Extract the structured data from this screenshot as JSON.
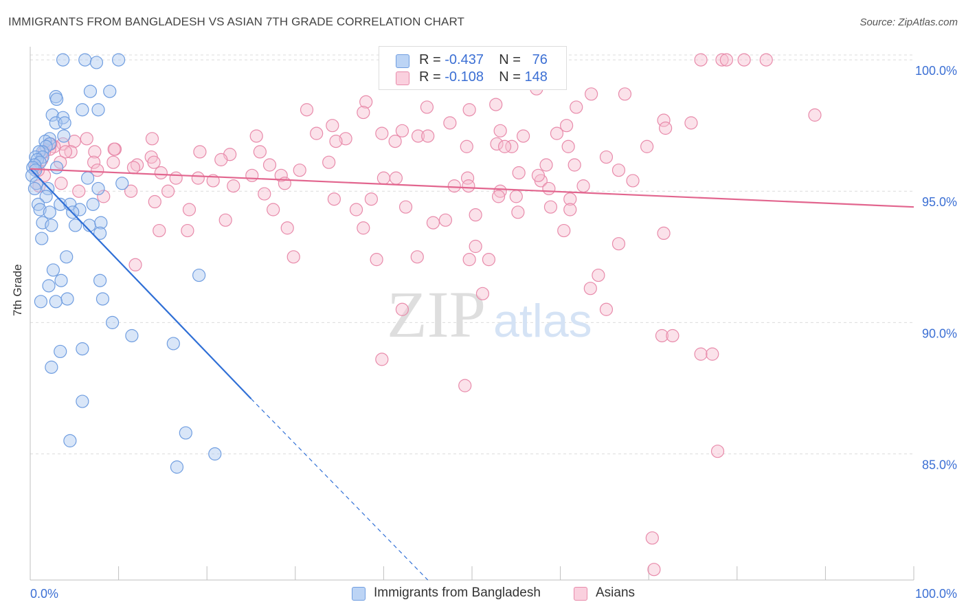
{
  "header": {
    "title": "IMMIGRANTS FROM BANGLADESH VS ASIAN 7TH GRADE CORRELATION CHART",
    "source": "Source: ZipAtlas.com"
  },
  "watermark": {
    "zip": "ZIP",
    "atlas": "atlas"
  },
  "legend": {
    "rows": [
      {
        "r_label": "R = ",
        "r_value": "-0.437",
        "n_label": "N = ",
        "n_value": "76"
      },
      {
        "r_label": "R = ",
        "r_value": "-0.108",
        "n_label": "N = ",
        "n_value": "148"
      }
    ]
  },
  "bottom_legend": {
    "series1": "Immigrants from Bangladesh",
    "series2": "Asians"
  },
  "colors": {
    "blue_fill": "#aac8f0",
    "blue_stroke": "#6f9de0",
    "blue_line": "#2f6fd6",
    "pink_fill": "#f7bfd1",
    "pink_stroke": "#e88aaa",
    "pink_line": "#e2658e",
    "tick_label": "#3b6fd4"
  },
  "chart_data": {
    "type": "scatter",
    "title": "IMMIGRANTS FROM BANGLADESH VS ASIAN 7TH GRADE CORRELATION CHART",
    "xlabel": "",
    "ylabel": "7th Grade",
    "xlim": [
      0,
      100
    ],
    "ylim": [
      80.2,
      100.5
    ],
    "x_tick_labels": [
      "0.0%",
      "100.0%"
    ],
    "y_ticks": [
      {
        "value": 100,
        "label": "100.0%"
      },
      {
        "value": 95,
        "label": "95.0%"
      },
      {
        "value": 90,
        "label": "90.0%"
      },
      {
        "value": 85,
        "label": "85.0%"
      }
    ],
    "grid": "horizontal dashed",
    "legend_position": "top-center",
    "series": [
      {
        "name": "Immigrants from Bangladesh",
        "R": -0.437,
        "N": 76,
        "trend": {
          "x": [
            0,
            25
          ],
          "y": [
            95.85,
            87.1
          ],
          "dashed_to": [
            45,
            80.2
          ]
        },
        "points": [
          [
            3.7,
            100
          ],
          [
            6.2,
            100
          ],
          [
            7.5,
            99.9
          ],
          [
            10,
            100
          ],
          [
            6.8,
            98.8
          ],
          [
            9,
            98.8
          ],
          [
            2.9,
            98.6
          ],
          [
            3,
            98.5
          ],
          [
            5.9,
            98.1
          ],
          [
            7.7,
            98.1
          ],
          [
            2.5,
            97.9
          ],
          [
            3.7,
            97.8
          ],
          [
            2.9,
            97.6
          ],
          [
            3.9,
            97.6
          ],
          [
            3.8,
            97.1
          ],
          [
            2.2,
            97
          ],
          [
            1.7,
            96.9
          ],
          [
            2.2,
            96.8
          ],
          [
            1.8,
            96.7
          ],
          [
            1.4,
            96.5
          ],
          [
            1,
            96.5
          ],
          [
            0.6,
            96.3
          ],
          [
            1.4,
            96.3
          ],
          [
            0.8,
            96.2
          ],
          [
            1.1,
            96.1
          ],
          [
            0.5,
            96
          ],
          [
            3,
            95.9
          ],
          [
            0.3,
            95.9
          ],
          [
            0.6,
            95.8
          ],
          [
            0.2,
            95.6
          ],
          [
            6.5,
            95.5
          ],
          [
            0.7,
            95.3
          ],
          [
            10.4,
            95.3
          ],
          [
            0.5,
            95.1
          ],
          [
            2,
            95.1
          ],
          [
            7.7,
            95.1
          ],
          [
            1.8,
            94.8
          ],
          [
            0.9,
            94.5
          ],
          [
            3.4,
            94.5
          ],
          [
            4.5,
            94.5
          ],
          [
            7.1,
            94.5
          ],
          [
            5.6,
            94.3
          ],
          [
            1.1,
            94.3
          ],
          [
            2.2,
            94.2
          ],
          [
            4.8,
            94.2
          ],
          [
            1.4,
            93.8
          ],
          [
            2.4,
            93.7
          ],
          [
            5.1,
            93.7
          ],
          [
            6.7,
            93.7
          ],
          [
            8,
            93.8
          ],
          [
            7.9,
            93.4
          ],
          [
            1.3,
            93.2
          ],
          [
            4.1,
            92.5
          ],
          [
            2.6,
            92
          ],
          [
            3.5,
            91.6
          ],
          [
            7.9,
            91.6
          ],
          [
            19.1,
            91.8
          ],
          [
            2.1,
            91.4
          ],
          [
            8.2,
            90.9
          ],
          [
            4.2,
            90.9
          ],
          [
            1.2,
            90.8
          ],
          [
            2.9,
            90.8
          ],
          [
            9.3,
            90
          ],
          [
            11.5,
            89.5
          ],
          [
            16.2,
            89.2
          ],
          [
            3.4,
            88.9
          ],
          [
            5.9,
            89
          ],
          [
            2.4,
            88.3
          ],
          [
            5.9,
            87
          ],
          [
            17.6,
            85.8
          ],
          [
            4.5,
            85.5
          ],
          [
            20.9,
            85
          ],
          [
            16.6,
            84.5
          ]
        ]
      },
      {
        "name": "Asians",
        "R": -0.108,
        "N": 148,
        "trend": {
          "x": [
            0,
            100
          ],
          "y": [
            95.85,
            94.4
          ]
        },
        "points": [
          [
            75.9,
            100
          ],
          [
            78.3,
            100
          ],
          [
            78.8,
            100
          ],
          [
            80.8,
            100
          ],
          [
            83.3,
            100
          ],
          [
            57.3,
            98.9
          ],
          [
            63.5,
            98.7
          ],
          [
            67.3,
            98.7
          ],
          [
            38,
            98.4
          ],
          [
            52.7,
            98.3
          ],
          [
            61.8,
            98.2
          ],
          [
            44.9,
            98.2
          ],
          [
            49.7,
            98.1
          ],
          [
            31.3,
            98.1
          ],
          [
            37.7,
            98
          ],
          [
            88.8,
            97.9
          ],
          [
            71.7,
            97.7
          ],
          [
            74.8,
            97.6
          ],
          [
            34.2,
            97.5
          ],
          [
            47.5,
            97.6
          ],
          [
            71.9,
            97.4
          ],
          [
            42.1,
            97.3
          ],
          [
            53.2,
            97.3
          ],
          [
            59.6,
            97.2
          ],
          [
            32.4,
            97.2
          ],
          [
            39.8,
            97.2
          ],
          [
            43.9,
            97.1
          ],
          [
            55.8,
            97.1
          ],
          [
            45,
            97.1
          ],
          [
            35.7,
            97
          ],
          [
            25.6,
            97.1
          ],
          [
            13.8,
            97
          ],
          [
            34.6,
            96.9
          ],
          [
            41.3,
            96.9
          ],
          [
            52.8,
            96.8
          ],
          [
            54.5,
            96.7
          ],
          [
            53.7,
            96.7
          ],
          [
            49.4,
            96.7
          ],
          [
            6.4,
            97
          ],
          [
            5,
            96.9
          ],
          [
            3.7,
            96.8
          ],
          [
            2.7,
            96.7
          ],
          [
            4.6,
            96.5
          ],
          [
            7.3,
            96.5
          ],
          [
            4,
            96.5
          ],
          [
            2.2,
            96.6
          ],
          [
            9.6,
            96.6
          ],
          [
            9.5,
            96.6
          ],
          [
            19.2,
            96.5
          ],
          [
            26,
            96.5
          ],
          [
            22.6,
            96.4
          ],
          [
            13.7,
            96.3
          ],
          [
            14,
            96.1
          ],
          [
            12.1,
            96
          ],
          [
            9.4,
            96.1
          ],
          [
            7.2,
            96.1
          ],
          [
            3.4,
            96.1
          ],
          [
            7.6,
            95.8
          ],
          [
            11.7,
            95.9
          ],
          [
            14.8,
            95.7
          ],
          [
            16.5,
            95.5
          ],
          [
            19,
            95.5
          ],
          [
            21.6,
            96.2
          ],
          [
            27.1,
            96
          ],
          [
            33.8,
            96.1
          ],
          [
            30.5,
            95.8
          ],
          [
            28.4,
            95.6
          ],
          [
            25.1,
            95.6
          ],
          [
            40,
            95.5
          ],
          [
            49.5,
            95.5
          ],
          [
            49.6,
            95.2
          ],
          [
            53.2,
            95
          ],
          [
            61.6,
            96
          ],
          [
            58.4,
            96
          ],
          [
            55.3,
            95.7
          ],
          [
            57.8,
            95.4
          ],
          [
            58.7,
            95.1
          ],
          [
            62.6,
            95.2
          ],
          [
            66.6,
            95.8
          ],
          [
            65.2,
            96.3
          ],
          [
            60.7,
            97.5
          ],
          [
            69.8,
            96.7
          ],
          [
            60.9,
            96.7
          ],
          [
            57.5,
            95.6
          ],
          [
            68.2,
            95.4
          ],
          [
            61.1,
            94.7
          ],
          [
            58.9,
            94.4
          ],
          [
            55,
            94.8
          ],
          [
            53,
            94.8
          ],
          [
            48,
            95.2
          ],
          [
            41.4,
            95.5
          ],
          [
            42.5,
            94.4
          ],
          [
            38.6,
            94.7
          ],
          [
            34.4,
            94.7
          ],
          [
            36.9,
            94.3
          ],
          [
            26.5,
            94.9
          ],
          [
            27.5,
            94.3
          ],
          [
            28.8,
            95.3
          ],
          [
            23,
            95.2
          ],
          [
            20.7,
            95.4
          ],
          [
            18,
            94.3
          ],
          [
            15.6,
            95
          ],
          [
            14.1,
            94.6
          ],
          [
            11.4,
            95
          ],
          [
            8.3,
            94.8
          ],
          [
            5.5,
            95
          ],
          [
            3.5,
            95.3
          ],
          [
            1.6,
            95.6
          ],
          [
            0.9,
            95.8
          ],
          [
            1.3,
            96.2
          ],
          [
            1.6,
            96.5
          ],
          [
            2.3,
            96.8
          ],
          [
            1,
            95.2
          ],
          [
            0.6,
            95.9
          ],
          [
            45.6,
            93.8
          ],
          [
            37.7,
            93.6
          ],
          [
            47,
            93.9
          ],
          [
            50.4,
            94.1
          ],
          [
            55.2,
            94.2
          ],
          [
            61.1,
            94.3
          ],
          [
            71.7,
            93.4
          ],
          [
            60.4,
            93.5
          ],
          [
            66.6,
            93
          ],
          [
            50.4,
            92.9
          ],
          [
            51.9,
            92.4
          ],
          [
            49.7,
            92.4
          ],
          [
            43.8,
            92.5
          ],
          [
            39.2,
            92.4
          ],
          [
            29.8,
            92.5
          ],
          [
            11.9,
            92.2
          ],
          [
            14.6,
            93.5
          ],
          [
            17.8,
            93.5
          ],
          [
            22.1,
            93.9
          ],
          [
            29.1,
            93.6
          ],
          [
            64.3,
            91.8
          ],
          [
            63.4,
            91.3
          ],
          [
            51.2,
            91.1
          ],
          [
            42.1,
            90.5
          ],
          [
            65.2,
            90.5
          ],
          [
            71.5,
            89.5
          ],
          [
            72.7,
            89.5
          ],
          [
            75.9,
            88.8
          ],
          [
            77.2,
            88.8
          ],
          [
            39.8,
            88.6
          ],
          [
            49.2,
            87.6
          ],
          [
            77.8,
            85.1
          ],
          [
            70.4,
            81.8
          ],
          [
            70.6,
            80.6
          ]
        ]
      }
    ]
  }
}
